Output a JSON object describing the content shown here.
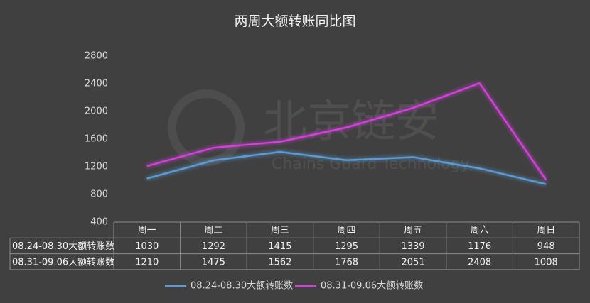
{
  "chart_data": {
    "type": "line",
    "title": "两周大额转账同比图",
    "categories": [
      "周一",
      "周二",
      "周三",
      "周四",
      "周五",
      "周六",
      "周日"
    ],
    "series": [
      {
        "name": "08.24-08.30大额转账数",
        "color": "#5b9bd5",
        "values": [
          1030,
          1292,
          1415,
          1295,
          1339,
          1176,
          948
        ]
      },
      {
        "name": "08.31-09.06大额转账数",
        "color": "#d33fdc",
        "values": [
          1210,
          1475,
          1562,
          1768,
          2051,
          2408,
          1008
        ]
      }
    ],
    "ylim": [
      400,
      2800
    ],
    "yticks": [
      400,
      800,
      1200,
      1600,
      2000,
      2400,
      2800
    ],
    "grid": false,
    "legend": "bottom"
  },
  "watermark": {
    "name": "北京链安",
    "subtitle": "Chains Guard Technology"
  }
}
